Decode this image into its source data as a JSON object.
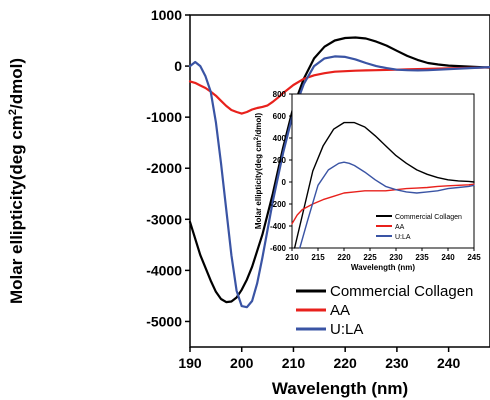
{
  "chart_data": [
    {
      "type": "line",
      "xlabel": "Wavelength (nm)",
      "ylabel_main": "Molar ellipticity(deg cm",
      "ylabel_sup": "2",
      "ylabel_tail": "/dmol)",
      "xlim": [
        190,
        248
      ],
      "ylim": [
        -5500,
        1000
      ],
      "xticks": [
        190,
        200,
        210,
        220,
        230,
        240
      ],
      "yticks": [
        1000,
        0,
        -1000,
        -2000,
        -3000,
        -4000,
        -5000
      ],
      "legend_position": "bottom-right",
      "series": [
        {
          "name": "Commercial Collagen",
          "color": "#000000",
          "x": [
            190,
            192,
            194,
            195,
            196,
            197,
            198,
            199,
            200,
            201,
            202,
            204,
            206,
            208,
            210,
            212,
            214,
            216,
            218,
            220,
            222,
            224,
            226,
            228,
            230,
            232,
            234,
            236,
            238,
            240,
            242,
            244,
            246,
            248
          ],
          "y": [
            -3050,
            -3700,
            -4200,
            -4420,
            -4560,
            -4620,
            -4610,
            -4530,
            -4380,
            -4180,
            -3930,
            -3300,
            -2500,
            -1600,
            -800,
            -250,
            150,
            380,
            500,
            550,
            560,
            540,
            480,
            400,
            300,
            200,
            120,
            60,
            30,
            10,
            0,
            -10,
            -20,
            -30
          ]
        },
        {
          "name": "AA",
          "color": "#e8211c",
          "x": [
            190,
            191,
            192,
            193,
            194,
            195,
            196,
            197,
            198,
            199,
            200,
            201,
            202,
            203,
            204,
            205,
            206,
            207,
            208,
            210,
            212,
            214,
            216,
            218,
            220,
            222,
            224,
            226,
            228,
            230,
            232,
            234,
            236,
            238,
            240,
            242,
            244,
            246,
            248
          ],
          "y": [
            -300,
            -330,
            -380,
            -430,
            -500,
            -580,
            -680,
            -780,
            -860,
            -900,
            -930,
            -900,
            -850,
            -820,
            -800,
            -770,
            -700,
            -620,
            -530,
            -370,
            -250,
            -180,
            -140,
            -110,
            -100,
            -90,
            -85,
            -80,
            -75,
            -70,
            -65,
            -60,
            -55,
            -50,
            -45,
            -40,
            -35,
            -30,
            -25
          ]
        },
        {
          "name": "U:LA",
          "color": "#3a54a4",
          "x": [
            190,
            191,
            192,
            193,
            194,
            195,
            196,
            197,
            198,
            199,
            200,
            201,
            202,
            203,
            204,
            205,
            206,
            208,
            210,
            212,
            214,
            216,
            218,
            220,
            222,
            224,
            226,
            228,
            230,
            232,
            234,
            236,
            238,
            240,
            242,
            244,
            246,
            248
          ],
          "y": [
            0,
            80,
            0,
            -200,
            -500,
            -1100,
            -1900,
            -2800,
            -3700,
            -4400,
            -4700,
            -4720,
            -4600,
            -4250,
            -3750,
            -3200,
            -2650,
            -1700,
            -900,
            -350,
            0,
            150,
            190,
            180,
            130,
            60,
            0,
            -40,
            -70,
            -80,
            -85,
            -80,
            -70,
            -60,
            -50,
            -40,
            -30,
            -20
          ]
        }
      ]
    },
    {
      "type": "line",
      "xlabel": "Wavelength (nm)",
      "ylabel_main": "Molar ellipticity(deg cm",
      "ylabel_sup": "2",
      "ylabel_tail": "/dmol)",
      "xlim": [
        210,
        245
      ],
      "ylim": [
        -600,
        800
      ],
      "xticks": [
        210,
        215,
        220,
        225,
        230,
        235,
        240,
        245
      ],
      "yticks": [
        800,
        600,
        400,
        200,
        0,
        -200,
        -400,
        -600
      ],
      "legend_position": "bottom-right",
      "series": [
        {
          "name": "Commercial Collagen",
          "color": "#000000",
          "x": [
            210.5,
            212,
            214,
            216,
            218,
            220,
            222,
            224,
            226,
            228,
            230,
            232,
            234,
            236,
            238,
            240,
            242,
            244,
            245
          ],
          "y": [
            -600,
            -300,
            100,
            330,
            480,
            540,
            540,
            500,
            420,
            330,
            240,
            170,
            110,
            70,
            40,
            20,
            10,
            5,
            0
          ]
        },
        {
          "name": "AA",
          "color": "#e8211c",
          "x": [
            210,
            211,
            212,
            214,
            216,
            218,
            220,
            222,
            224,
            226,
            228,
            230,
            232,
            234,
            236,
            238,
            240,
            242,
            244,
            245
          ],
          "y": [
            -380,
            -300,
            -250,
            -200,
            -160,
            -130,
            -100,
            -90,
            -80,
            -80,
            -80,
            -70,
            -60,
            -55,
            -50,
            -40,
            -35,
            -30,
            -25,
            -20
          ]
        },
        {
          "name": "U:LA",
          "color": "#3a54a4",
          "x": [
            211.5,
            213,
            215,
            217,
            219,
            220,
            221,
            222,
            224,
            226,
            228,
            230,
            232,
            234,
            236,
            238,
            240,
            242,
            244,
            245
          ],
          "y": [
            -600,
            -350,
            -30,
            110,
            170,
            180,
            170,
            150,
            90,
            20,
            -40,
            -70,
            -90,
            -100,
            -90,
            -80,
            -60,
            -50,
            -40,
            -30
          ]
        }
      ]
    }
  ]
}
